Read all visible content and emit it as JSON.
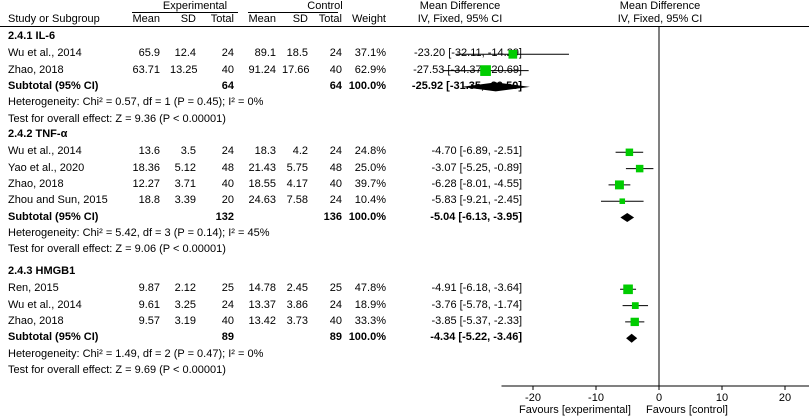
{
  "header": {
    "experimental": "Experimental",
    "control": "Control",
    "mean_difference": "Mean Difference",
    "mean_difference_plot": "Mean Difference",
    "study": "Study or Subgroup",
    "mean": "Mean",
    "sd": "SD",
    "total": "Total",
    "weight": "Weight",
    "method": "IV, Fixed, 95% CI",
    "method_plot": "IV, Fixed, 95% CI"
  },
  "groups": [
    {
      "title": "2.4.1 IL-6",
      "studies": [
        {
          "name": "Wu et al., 2014",
          "e_mean": "65.9",
          "e_sd": "12.4",
          "e_total": "24",
          "c_mean": "89.1",
          "c_sd": "18.5",
          "c_total": "24",
          "weight": "37.1%",
          "ci": "-23.20 [-32.11, -14.29]"
        },
        {
          "name": "Zhao, 2018",
          "e_mean": "63.71",
          "e_sd": "13.25",
          "e_total": "40",
          "c_mean": "91.24",
          "c_sd": "17.66",
          "c_total": "40",
          "weight": "62.9%",
          "ci": "-27.53 [-34.37, -20.69]"
        }
      ],
      "subtotal": {
        "label": "Subtotal (95% CI)",
        "e_total": "64",
        "c_total": "64",
        "weight": "100.0%",
        "ci": "-25.92 [-31.35, -20.50]"
      },
      "heterogeneity": "Heterogeneity: Chi² = 0.57, df = 1 (P = 0.45); I² = 0%",
      "overall": "Test for overall effect: Z = 9.36 (P < 0.00001)"
    },
    {
      "title": "2.4.2 TNF-α",
      "studies": [
        {
          "name": "Wu et al., 2014",
          "e_mean": "13.6",
          "e_sd": "3.5",
          "e_total": "24",
          "c_mean": "18.3",
          "c_sd": "4.2",
          "c_total": "24",
          "weight": "24.8%",
          "ci": "-4.70 [-6.89, -2.51]"
        },
        {
          "name": "Yao et al., 2020",
          "e_mean": "18.36",
          "e_sd": "5.12",
          "e_total": "48",
          "c_mean": "21.43",
          "c_sd": "5.75",
          "c_total": "48",
          "weight": "25.0%",
          "ci": "-3.07 [-5.25, -0.89]"
        },
        {
          "name": "Zhao, 2018",
          "e_mean": "12.27",
          "e_sd": "3.71",
          "e_total": "40",
          "c_mean": "18.55",
          "c_sd": "4.17",
          "c_total": "40",
          "weight": "39.7%",
          "ci": "-6.28 [-8.01, -4.55]"
        },
        {
          "name": "Zhou and Sun, 2015",
          "e_mean": "18.8",
          "e_sd": "3.39",
          "e_total": "20",
          "c_mean": "24.63",
          "c_sd": "7.58",
          "c_total": "24",
          "weight": "10.4%",
          "ci": "-5.83 [-9.21, -2.45]"
        }
      ],
      "subtotal": {
        "label": "Subtotal (95% CI)",
        "e_total": "132",
        "c_total": "136",
        "weight": "100.0%",
        "ci": "-5.04 [-6.13, -3.95]"
      },
      "heterogeneity": "Heterogeneity: Chi² = 5.42, df = 3 (P = 0.14); I² = 45%",
      "overall": "Test for overall effect: Z = 9.06 (P < 0.00001)"
    },
    {
      "title": "2.4.3 HMGB1",
      "studies": [
        {
          "name": "Ren, 2015",
          "e_mean": "9.87",
          "e_sd": "2.12",
          "e_total": "25",
          "c_mean": "14.78",
          "c_sd": "2.45",
          "c_total": "25",
          "weight": "47.8%",
          "ci": "-4.91 [-6.18, -3.64]"
        },
        {
          "name": "Wu et al., 2014",
          "e_mean": "9.61",
          "e_sd": "3.25",
          "e_total": "24",
          "c_mean": "13.37",
          "c_sd": "3.86",
          "c_total": "24",
          "weight": "18.9%",
          "ci": "-3.76 [-5.78, -1.74]"
        },
        {
          "name": "Zhao, 2018",
          "e_mean": "9.57",
          "e_sd": "3.19",
          "e_total": "40",
          "c_mean": "13.42",
          "c_sd": "3.73",
          "c_total": "40",
          "weight": "33.3%",
          "ci": "-3.85 [-5.37, -2.33]"
        }
      ],
      "subtotal": {
        "label": "Subtotal (95% CI)",
        "e_total": "89",
        "c_total": "89",
        "weight": "100.0%",
        "ci": "-4.34 [-5.22, -3.46]"
      },
      "heterogeneity": "Heterogeneity: Chi² = 1.49, df = 2 (P = 0.47); I² = 0%",
      "overall": "Test for overall effect: Z = 9.69 (P < 0.00001)"
    }
  ],
  "footer": {
    "favours_left": "Favours [experimental]",
    "favours_right": "Favours [control]"
  },
  "chart_data": {
    "type": "forest",
    "xlim": [
      -25,
      25
    ],
    "x_ticks": [
      "-20",
      "-10",
      "0",
      "10",
      "20"
    ],
    "x_tick_values": [
      -20,
      -10,
      0,
      10,
      20
    ],
    "marker_color": "#00cc00",
    "groups": [
      {
        "name": "2.4.1 IL-6",
        "studies": [
          {
            "name": "Wu et al., 2014",
            "md": -23.2,
            "lo": -32.11,
            "hi": -14.29,
            "weight": 37.1
          },
          {
            "name": "Zhao, 2018",
            "md": -27.53,
            "lo": -34.37,
            "hi": -20.69,
            "weight": 62.9
          }
        ],
        "subtotal": {
          "md": -25.92,
          "lo": -31.35,
          "hi": -20.5
        }
      },
      {
        "name": "2.4.2 TNF-α",
        "studies": [
          {
            "name": "Wu et al., 2014",
            "md": -4.7,
            "lo": -6.89,
            "hi": -2.51,
            "weight": 24.8
          },
          {
            "name": "Yao et al., 2020",
            "md": -3.07,
            "lo": -5.25,
            "hi": -0.89,
            "weight": 25.0
          },
          {
            "name": "Zhao, 2018",
            "md": -6.28,
            "lo": -8.01,
            "hi": -4.55,
            "weight": 39.7
          },
          {
            "name": "Zhou and Sun, 2015",
            "md": -5.83,
            "lo": -9.21,
            "hi": -2.45,
            "weight": 10.4
          }
        ],
        "subtotal": {
          "md": -5.04,
          "lo": -6.13,
          "hi": -3.95
        }
      },
      {
        "name": "2.4.3 HMGB1",
        "studies": [
          {
            "name": "Ren, 2015",
            "md": -4.91,
            "lo": -6.18,
            "hi": -3.64,
            "weight": 47.8
          },
          {
            "name": "Wu et al., 2014",
            "md": -3.76,
            "lo": -5.78,
            "hi": -1.74,
            "weight": 18.9
          },
          {
            "name": "Zhao, 2018",
            "md": -3.85,
            "lo": -5.37,
            "hi": -2.33,
            "weight": 33.3
          }
        ],
        "subtotal": {
          "md": -4.34,
          "lo": -5.22,
          "hi": -3.46
        }
      }
    ]
  }
}
